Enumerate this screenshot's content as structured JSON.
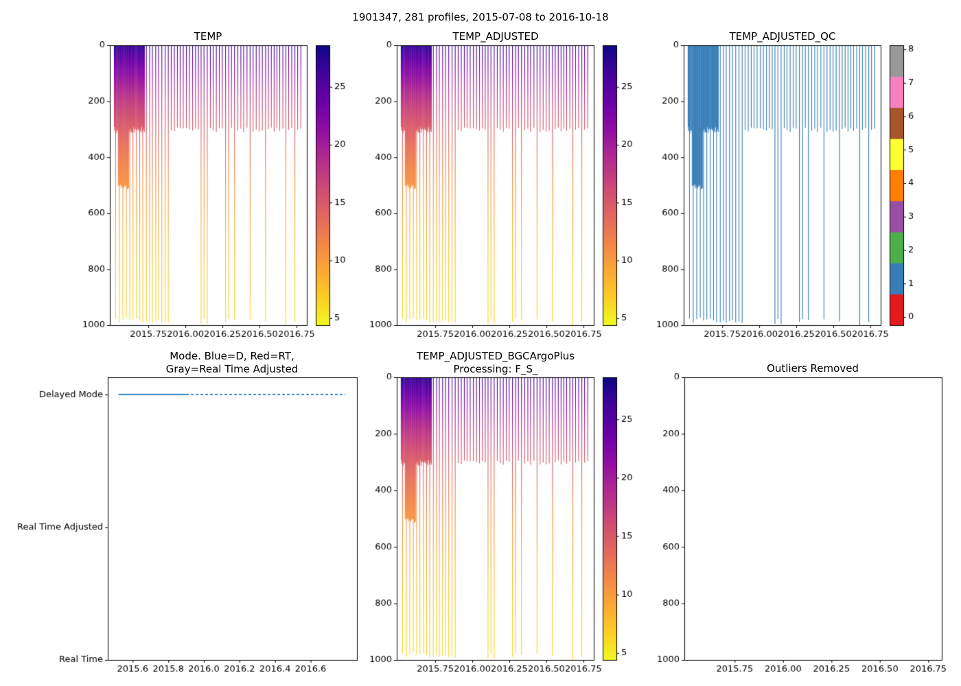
{
  "figure_title": "1901347, 281 profiles, 2015-07-08 to 2016-10-18",
  "figure_meta": {
    "platform": "1901347",
    "profile_count": 281,
    "start_date": "2015-07-08",
    "end_date": "2016-10-18"
  },
  "colors": {
    "background": "#ffffff",
    "axis": "#000000",
    "mode_line": "#1f77b4",
    "plasma_reversed_stops": [
      "#0d0887",
      "#41049d",
      "#6a00a8",
      "#8f0da4",
      "#b12a90",
      "#cc4778",
      "#e16462",
      "#f2844b",
      "#fca636",
      "#fcce25",
      "#f0f921"
    ],
    "qc_palette": [
      "#e41a1c",
      "#377eb8",
      "#4daf4a",
      "#984ea3",
      "#ff7f00",
      "#ffff33",
      "#a65628",
      "#f781bf",
      "#999999"
    ]
  },
  "chart_data": [
    {
      "id": "temp",
      "type": "heatmap",
      "title": "TEMP",
      "xlabel": "",
      "ylabel": "",
      "xlim": [
        2015.49,
        2016.82
      ],
      "ylim": [
        1000,
        0
      ],
      "xtick_values": [
        2015.75,
        2016.0,
        2016.25,
        2016.5,
        2016.75
      ],
      "xtick_labels": [
        "2015.75",
        "2016.00",
        "2016.25",
        "2016.50",
        "2016.75"
      ],
      "ytick_values": [
        0,
        200,
        400,
        600,
        800,
        1000
      ],
      "colorbar": {
        "kind": "continuous",
        "colormap": "plasma_reversed",
        "vmin": 4.4,
        "vmax": 28.6,
        "tick_values": [
          5,
          10,
          15,
          20,
          25
        ],
        "tick_labels": [
          "5",
          "10",
          "15",
          "20",
          "25"
        ]
      }
    },
    {
      "id": "temp_adjusted",
      "type": "heatmap",
      "title": "TEMP_ADJUSTED",
      "xlabel": "",
      "ylabel": "",
      "xlim": [
        2015.49,
        2016.82
      ],
      "ylim": [
        1000,
        0
      ],
      "xtick_values": [
        2015.75,
        2016.0,
        2016.25,
        2016.5,
        2016.75
      ],
      "xtick_labels": [
        "2015.75",
        "2016.00",
        "2016.25",
        "2016.50",
        "2016.75"
      ],
      "ytick_values": [
        0,
        200,
        400,
        600,
        800,
        1000
      ],
      "colorbar": {
        "kind": "continuous",
        "colormap": "plasma_reversed",
        "vmin": 4.4,
        "vmax": 28.6,
        "tick_values": [
          5,
          10,
          15,
          20,
          25
        ],
        "tick_labels": [
          "5",
          "10",
          "15",
          "20",
          "25"
        ]
      }
    },
    {
      "id": "temp_adjusted_qc",
      "type": "heatmap",
      "title": "TEMP_ADJUSTED_QC",
      "xlabel": "",
      "ylabel": "",
      "xlim": [
        2015.49,
        2016.82
      ],
      "ylim": [
        1000,
        0
      ],
      "xtick_values": [
        2015.75,
        2016.0,
        2016.25,
        2016.5,
        2016.75
      ],
      "xtick_labels": [
        "2015.75",
        "2016.00",
        "2016.25",
        "2016.50",
        "2016.75"
      ],
      "ytick_values": [
        0,
        200,
        400,
        600,
        800,
        1000
      ],
      "profile_qc_value": 1,
      "colorbar": {
        "kind": "discrete",
        "n_levels": 9,
        "tick_values": [
          0,
          1,
          2,
          3,
          4,
          5,
          6,
          7,
          8
        ],
        "tick_labels": [
          "0",
          "1",
          "2",
          "3",
          "4",
          "5",
          "6",
          "7",
          "8"
        ]
      }
    },
    {
      "id": "mode",
      "type": "line",
      "title": "Mode. Blue=D, Red=RT, Gray=Real Time Adjusted",
      "title_lines": [
        "Mode. Blue=D, Red=RT,",
        "Gray=Real Time Adjusted"
      ],
      "xlim": [
        2015.46,
        2016.86
      ],
      "xtick_values": [
        2015.6,
        2015.8,
        2016.0,
        2016.2,
        2016.4,
        2016.6
      ],
      "xtick_labels": [
        "2015.6",
        "2015.8",
        "2016.0",
        "2016.2",
        "2016.4",
        "2016.6"
      ],
      "categories": [
        "Delayed Mode",
        "Real Time Adjusted",
        "Real Time"
      ],
      "series": [
        {
          "name": "processing-mode",
          "category": "Delayed Mode",
          "x_start": 2015.52,
          "x_end": 2016.795,
          "style": "dashed",
          "solid_until": 2015.9
        }
      ]
    },
    {
      "id": "temp_adjusted_bgc",
      "type": "heatmap",
      "title": "TEMP_ADJUSTED_BGCArgoPlus Processing: F_S_",
      "title_lines": [
        "TEMP_ADJUSTED_BGCArgoPlus",
        "Processing: F_S_"
      ],
      "xlabel": "",
      "ylabel": "",
      "xlim": [
        2015.49,
        2016.82
      ],
      "ylim": [
        1000,
        0
      ],
      "xtick_values": [
        2015.75,
        2016.0,
        2016.25,
        2016.5,
        2016.75
      ],
      "xtick_labels": [
        "2015.75",
        "2016.00",
        "2016.25",
        "2016.50",
        "2016.75"
      ],
      "ytick_values": [
        0,
        200,
        400,
        600,
        800,
        1000
      ],
      "colorbar": {
        "kind": "continuous",
        "colormap": "plasma_reversed",
        "vmin": 4.4,
        "vmax": 28.6,
        "tick_values": [
          5,
          10,
          15,
          20,
          25
        ],
        "tick_labels": [
          "5",
          "10",
          "15",
          "20",
          "25"
        ]
      }
    },
    {
      "id": "outliers_removed",
      "type": "scatter",
      "title": "Outliers Removed",
      "points": [],
      "xlim": [
        2015.49,
        2016.82
      ],
      "ylim": [
        1000,
        0
      ],
      "xtick_values": [
        2015.75,
        2016.0,
        2016.25,
        2016.5,
        2016.75
      ],
      "xtick_labels": [
        "2015.75",
        "2016.00",
        "2016.25",
        "2016.50",
        "2016.75"
      ],
      "ytick_values": [
        0,
        200,
        400,
        600,
        800,
        1000
      ]
    }
  ],
  "profile_model": {
    "time_start": 2015.52,
    "dense_period_end": 2015.725,
    "time_end": 2016.795,
    "dense_interval_years": 0.0032,
    "sparse_interval_years": 0.0205,
    "shallow_profile_depth_m": 303,
    "mid_profile_depth_m": 507,
    "mid_depth_period": [
      2015.545,
      2015.617
    ],
    "full_profile_depth_m": 1000,
    "dense_deep_every_n": 7,
    "sparse_deep_fraction_early": 0.45,
    "sparse_deep_fraction_late": 0.32,
    "surface_temp_c": 27.6,
    "deep_temp_c": 4.6,
    "thermocline_scale_m": 380
  }
}
